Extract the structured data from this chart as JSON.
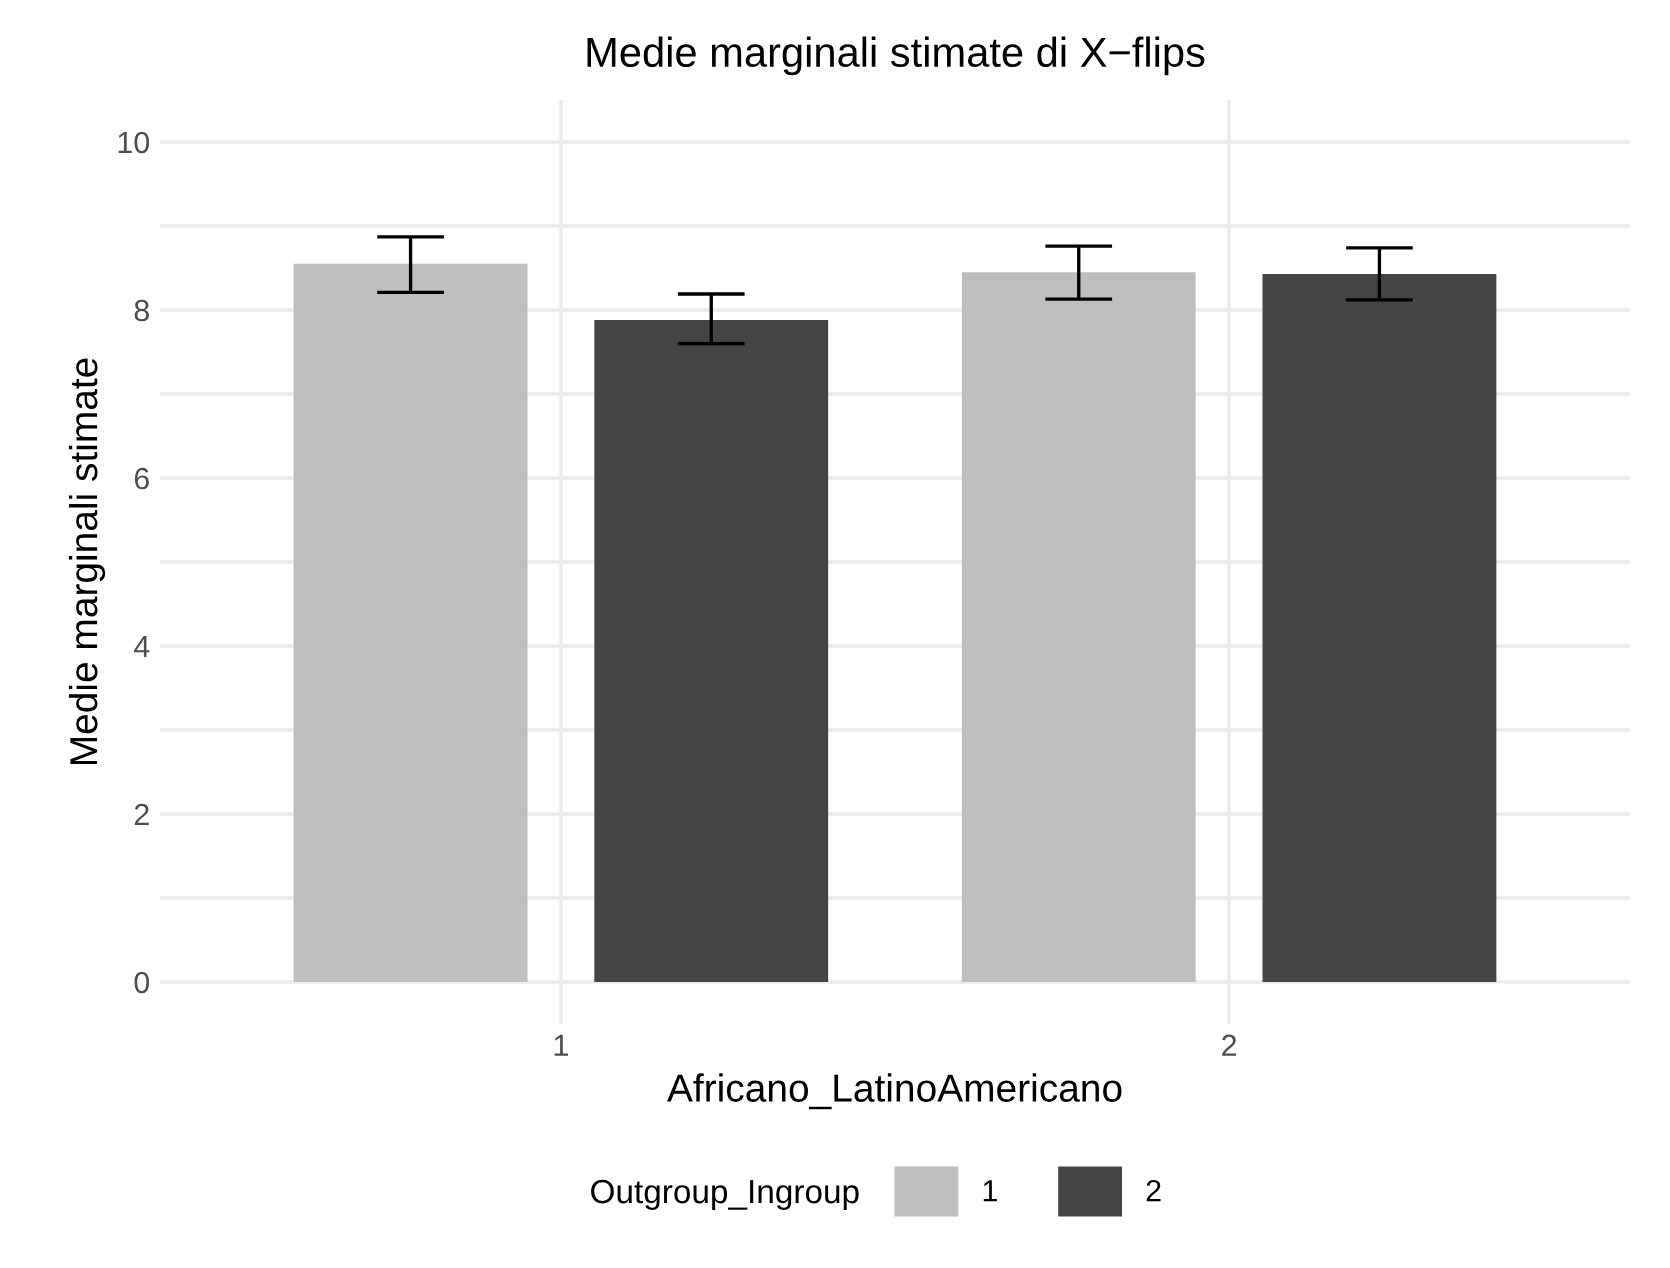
{
  "chart_data": {
    "type": "bar",
    "title": "Medie marginali stimate di X−flips",
    "xlabel": "Africano_LatinoAmericano",
    "ylabel": "Medie marginali stimate",
    "legend_title": "Outgroup_Ingroup",
    "categories": [
      "1",
      "2"
    ],
    "series": [
      {
        "name": "1",
        "color": "#bebebe",
        "values": [
          8.55,
          8.45
        ],
        "errors": [
          [
            8.21,
            8.87
          ],
          [
            8.13,
            8.76
          ]
        ]
      },
      {
        "name": "2",
        "color": "#444444",
        "values": [
          7.88,
          8.43
        ],
        "errors": [
          [
            7.6,
            8.19
          ],
          [
            8.12,
            8.74
          ]
        ]
      }
    ],
    "ylim": [
      -0.5,
      10.5
    ],
    "yticks": [
      0,
      {
        "value": 1,
        "label": null
      },
      2,
      {
        "value": 3,
        "label": null
      },
      4,
      {
        "value": 5,
        "label": null
      },
      6,
      {
        "value": 7,
        "label": null
      },
      8,
      {
        "value": 9,
        "label": null
      },
      10
    ],
    "grid": true,
    "legend": "bottom"
  }
}
